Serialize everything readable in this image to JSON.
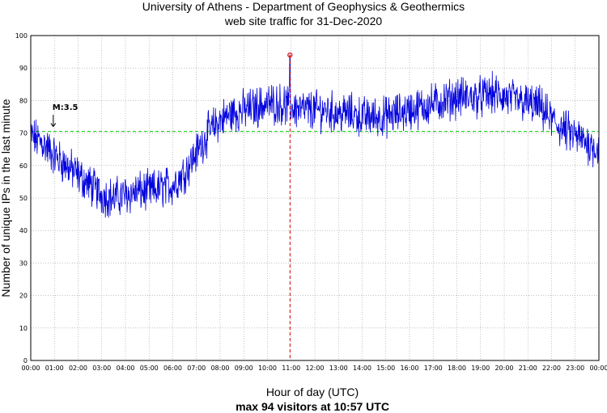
{
  "chart_data": {
    "type": "line",
    "title_line1": "University of Athens - Department of Geophysics & Geothermics",
    "title_line2": "web site traffic for 31-Dec-2020",
    "xlabel": "Hour of day (UTC)",
    "ylabel": "Number of unique IPs in the last minute",
    "footer": "max 94 visitors at 10:57 UTC",
    "ylim": [
      0,
      100
    ],
    "yticks": [
      0,
      10,
      20,
      30,
      40,
      50,
      60,
      70,
      80,
      90,
      100
    ],
    "xlim_hours": [
      0,
      24
    ],
    "xticks": [
      "00:00",
      "01:00",
      "02:00",
      "03:00",
      "04:00",
      "05:00",
      "06:00",
      "07:00",
      "08:00",
      "09:00",
      "10:00",
      "11:00",
      "12:00",
      "13:00",
      "14:00",
      "15:00",
      "16:00",
      "17:00",
      "18:00",
      "19:00",
      "20:00",
      "21:00",
      "22:00",
      "23:00",
      "00:00"
    ],
    "grid": true,
    "mean_line": {
      "value": 70.5,
      "color": "#00cc00"
    },
    "max_marker": {
      "time_hours": 10.95,
      "value": 94,
      "color": "#dd0000"
    },
    "annotation": {
      "text": "M:3.5",
      "time_hours": 0.95,
      "arrow_to_value": 72
    },
    "series": [
      {
        "name": "visitors",
        "color": "#0000dd",
        "trend_hours": [
          0,
          0.5,
          1,
          1.5,
          2,
          2.5,
          3,
          3.5,
          4,
          4.5,
          5,
          5.5,
          6,
          6.5,
          7,
          7.5,
          8,
          8.5,
          9,
          9.5,
          10,
          10.5,
          11,
          11.5,
          12,
          12.5,
          13,
          13.5,
          14,
          14.5,
          15,
          15.5,
          16,
          16.5,
          17,
          17.5,
          18,
          18.5,
          19,
          19.5,
          20,
          20.5,
          21,
          21.5,
          22,
          22.5,
          23,
          23.5,
          24
        ],
        "trend_values": [
          69,
          67,
          63,
          60,
          57,
          54,
          51,
          50,
          51,
          52,
          52,
          53,
          54,
          58,
          64,
          70,
          74,
          76,
          77,
          78,
          79,
          79,
          78,
          77,
          77,
          77,
          76,
          76,
          75,
          75,
          75,
          76,
          77,
          78,
          79,
          80,
          81,
          81,
          81,
          82,
          81,
          80,
          79,
          78,
          74,
          71,
          69,
          67,
          65
        ],
        "noise_amplitude": 5,
        "samples": 1440
      }
    ]
  }
}
